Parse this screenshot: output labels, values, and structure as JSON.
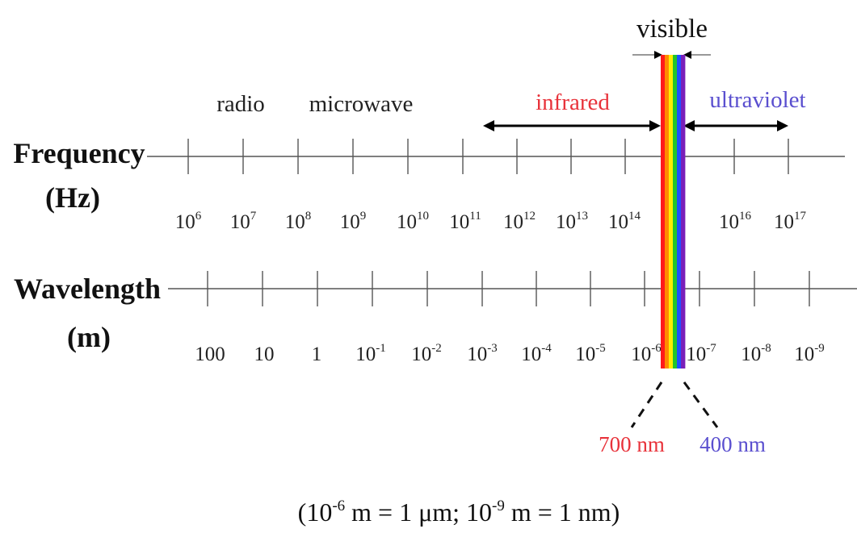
{
  "visible_label": "visible",
  "bands": {
    "radio": "radio",
    "microwave": "microwave",
    "infrared": "infrared",
    "ultraviolet": "ultraviolet"
  },
  "frequency_axis": {
    "title_line1": "Frequency",
    "title_line2": "(Hz)",
    "labels": [
      {
        "base": "10",
        "exp": "6"
      },
      {
        "base": "10",
        "exp": "7"
      },
      {
        "base": "10",
        "exp": "8"
      },
      {
        "base": "10",
        "exp": "9"
      },
      {
        "base": "10",
        "exp": "10"
      },
      {
        "base": "10",
        "exp": "11"
      },
      {
        "base": "10",
        "exp": "12"
      },
      {
        "base": "10",
        "exp": "13"
      },
      {
        "base": "10",
        "exp": "14"
      },
      {
        "base": "10",
        "exp": "16"
      },
      {
        "base": "10",
        "exp": "17"
      }
    ]
  },
  "wavelength_axis": {
    "title_line1": "Wavelength",
    "title_line2": "(m)",
    "labels": [
      {
        "base": "100",
        "exp": ""
      },
      {
        "base": "10",
        "exp": ""
      },
      {
        "base": "1",
        "exp": ""
      },
      {
        "base": "10",
        "exp": "-1"
      },
      {
        "base": "10",
        "exp": "-2"
      },
      {
        "base": "10",
        "exp": "-3"
      },
      {
        "base": "10",
        "exp": "-4"
      },
      {
        "base": "10",
        "exp": "-5"
      },
      {
        "base": "10",
        "exp": "-6"
      },
      {
        "base": "10",
        "exp": "-7"
      },
      {
        "base": "10",
        "exp": "-8"
      },
      {
        "base": "10",
        "exp": "-9"
      }
    ]
  },
  "visible_limits": {
    "red": "700 nm",
    "violet": "400 nm"
  },
  "footnote": {
    "open": "(10",
    "exp1": "-6",
    "mid": " m = 1 μm; 10",
    "exp2": "-9",
    "end": " m =  1 nm)"
  },
  "colors": {
    "infrared_text": "#e8323a",
    "ultraviolet_text": "#5a4fcf",
    "red_limit_text": "#e8323a",
    "violet_limit_text": "#5a4fcf",
    "spectrum": [
      "#ff1a1a",
      "#ff8a00",
      "#ffee00",
      "#22c52a",
      "#1f4fff",
      "#7a1fb8"
    ]
  }
}
